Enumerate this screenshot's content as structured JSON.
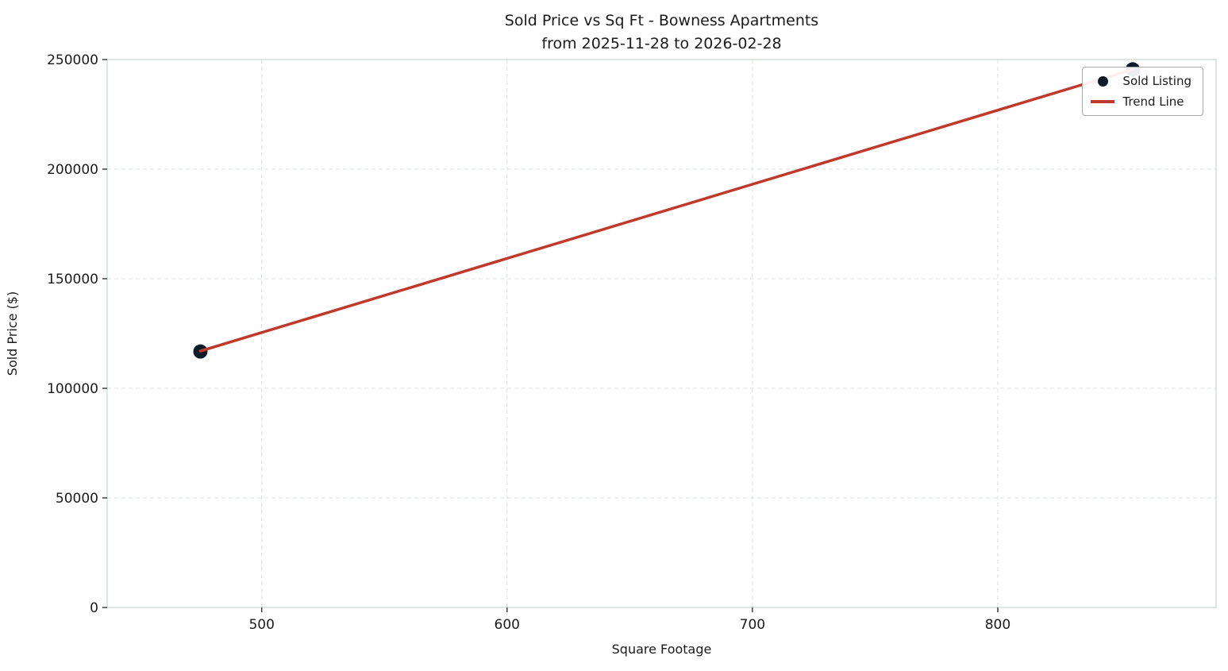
{
  "chart_data": {
    "type": "scatter",
    "title_line1": "Sold Price vs Sq Ft - Bowness Apartments",
    "title_line2": "from 2025-11-28 to 2026-02-28",
    "xlabel": "Square Footage",
    "ylabel": "Sold Price ($)",
    "xlim": [
      437,
      889
    ],
    "ylim": [
      0,
      250000
    ],
    "xticks": [
      500,
      600,
      700,
      800
    ],
    "yticks": [
      0,
      50000,
      100000,
      150000,
      200000,
      250000
    ],
    "grid": "dashed",
    "legend_position": "upper right",
    "series": [
      {
        "name": "Sold Listing",
        "type": "scatter",
        "points": [
          {
            "x": 475,
            "y": 116800
          },
          {
            "x": 855,
            "y": 245500
          }
        ]
      },
      {
        "name": "Trend Line",
        "type": "line",
        "points": [
          {
            "x": 475,
            "y": 117000
          },
          {
            "x": 855,
            "y": 245500
          }
        ]
      }
    ],
    "legend": [
      {
        "label": "Sold Listing",
        "swatch": "marker"
      },
      {
        "label": "Trend Line",
        "swatch": "line"
      }
    ],
    "colors": {
      "marker": "#0d1b2a",
      "trend": "#c0392b",
      "grid": "#d9e2dd",
      "frame": "#cfd8d3",
      "text": "#1a1a1a",
      "tick": "#333333"
    }
  }
}
